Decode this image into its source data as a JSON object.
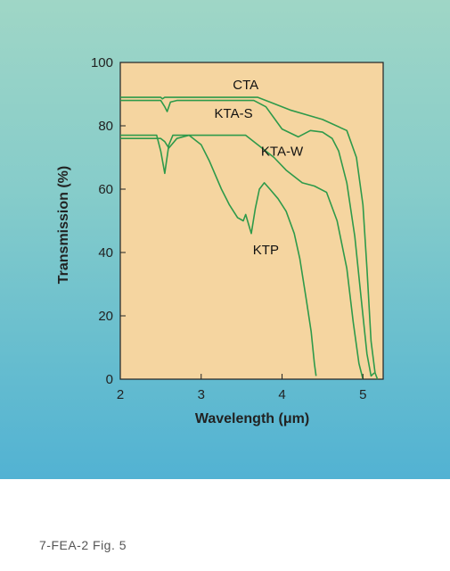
{
  "colors": {
    "plot_bg": "#f5d5a0",
    "curve": "#2e9a4a",
    "axis": "#222222"
  },
  "caption": "7-FEA-2 Fig. 5",
  "chart_data": {
    "type": "line",
    "title": "",
    "xlabel": "Wavelength (μm)",
    "ylabel": "Transmission (%)",
    "xlim": [
      2,
      5.25
    ],
    "ylim": [
      0,
      100
    ],
    "x_ticks": [
      2,
      3,
      4,
      5
    ],
    "y_ticks": [
      0,
      20,
      40,
      60,
      80,
      100
    ],
    "grid": false,
    "series": [
      {
        "name": "CTA",
        "label_at": [
          3.55,
          91.5
        ],
        "points": [
          [
            2,
            89
          ],
          [
            2.5,
            89
          ],
          [
            2.52,
            88.5
          ],
          [
            2.55,
            89
          ],
          [
            3.7,
            89
          ],
          [
            3.85,
            87.5
          ],
          [
            4.1,
            85
          ],
          [
            4.5,
            82
          ],
          [
            4.8,
            78.5
          ],
          [
            4.92,
            70
          ],
          [
            5.0,
            55
          ],
          [
            5.05,
            35
          ],
          [
            5.1,
            12
          ],
          [
            5.15,
            2
          ],
          [
            5.18,
            0
          ]
        ]
      },
      {
        "name": "KTA-S",
        "label_at": [
          3.4,
          82.5
        ],
        "points": [
          [
            2,
            88
          ],
          [
            2.5,
            88
          ],
          [
            2.55,
            86
          ],
          [
            2.58,
            84.5
          ],
          [
            2.62,
            87.5
          ],
          [
            2.7,
            88
          ],
          [
            3.65,
            88
          ],
          [
            3.8,
            86
          ],
          [
            4.0,
            79
          ],
          [
            4.2,
            76.5
          ],
          [
            4.35,
            78.5
          ],
          [
            4.5,
            78
          ],
          [
            4.62,
            76
          ],
          [
            4.7,
            72
          ],
          [
            4.8,
            62
          ],
          [
            4.9,
            45
          ],
          [
            4.98,
            25
          ],
          [
            5.05,
            8
          ],
          [
            5.1,
            1
          ],
          [
            5.14,
            2
          ]
        ]
      },
      {
        "name": "KTA-W",
        "label_at": [
          4.0,
          70.5
        ],
        "points": [
          [
            2,
            77
          ],
          [
            2.45,
            77
          ],
          [
            2.5,
            72
          ],
          [
            2.55,
            65
          ],
          [
            2.6,
            74
          ],
          [
            2.65,
            77
          ],
          [
            3.55,
            77
          ],
          [
            3.7,
            74
          ],
          [
            3.9,
            70
          ],
          [
            4.05,
            66
          ],
          [
            4.25,
            62
          ],
          [
            4.4,
            61
          ],
          [
            4.55,
            59
          ],
          [
            4.68,
            50
          ],
          [
            4.8,
            35
          ],
          [
            4.88,
            18
          ],
          [
            4.95,
            5
          ],
          [
            5.0,
            0
          ]
        ]
      },
      {
        "name": "KTP",
        "label_at": [
          3.8,
          39.5
        ],
        "points": [
          [
            2,
            76
          ],
          [
            2.5,
            76
          ],
          [
            2.55,
            75
          ],
          [
            2.6,
            73
          ],
          [
            2.7,
            76
          ],
          [
            2.85,
            77
          ],
          [
            3.0,
            74
          ],
          [
            3.1,
            69
          ],
          [
            3.25,
            60
          ],
          [
            3.35,
            55
          ],
          [
            3.45,
            51
          ],
          [
            3.52,
            50
          ],
          [
            3.55,
            52
          ],
          [
            3.62,
            46
          ],
          [
            3.67,
            54
          ],
          [
            3.72,
            60
          ],
          [
            3.78,
            62
          ],
          [
            3.85,
            60
          ],
          [
            3.95,
            57
          ],
          [
            4.05,
            53
          ],
          [
            4.15,
            46
          ],
          [
            4.22,
            38
          ],
          [
            4.3,
            25
          ],
          [
            4.36,
            15
          ],
          [
            4.4,
            5
          ],
          [
            4.42,
            1
          ]
        ]
      }
    ]
  }
}
